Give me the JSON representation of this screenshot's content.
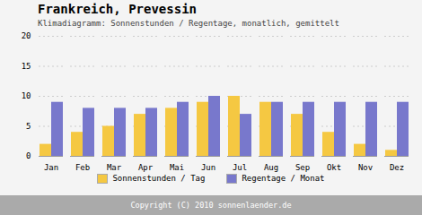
{
  "chart_data": {
    "type": "bar",
    "title": "Frankreich, Prevessin",
    "subtitle": "Klimadiagramm: Sonnenstunden / Regentage, monatlich, gemittelt",
    "categories": [
      "Jan",
      "Feb",
      "Mar",
      "Apr",
      "Mai",
      "Jun",
      "Jul",
      "Aug",
      "Sep",
      "Okt",
      "Nov",
      "Dez"
    ],
    "series": [
      {
        "name": "Sonnenstunden / Tag",
        "color": "#f5c842",
        "values": [
          2,
          4,
          5,
          7,
          8,
          9,
          10,
          9,
          7,
          4,
          2,
          1
        ]
      },
      {
        "name": "Regentage / Monat",
        "color": "#7878cc",
        "values": [
          9,
          8,
          8,
          8,
          9,
          10,
          7,
          9,
          9,
          9,
          9,
          9
        ]
      }
    ],
    "ylim": [
      0,
      20
    ],
    "yticks": [
      0,
      5,
      10,
      15,
      20
    ],
    "grid": true,
    "legend": "bottom",
    "annotations": [
      "Copyright (C) 2010 sonnenlaender.de"
    ]
  }
}
